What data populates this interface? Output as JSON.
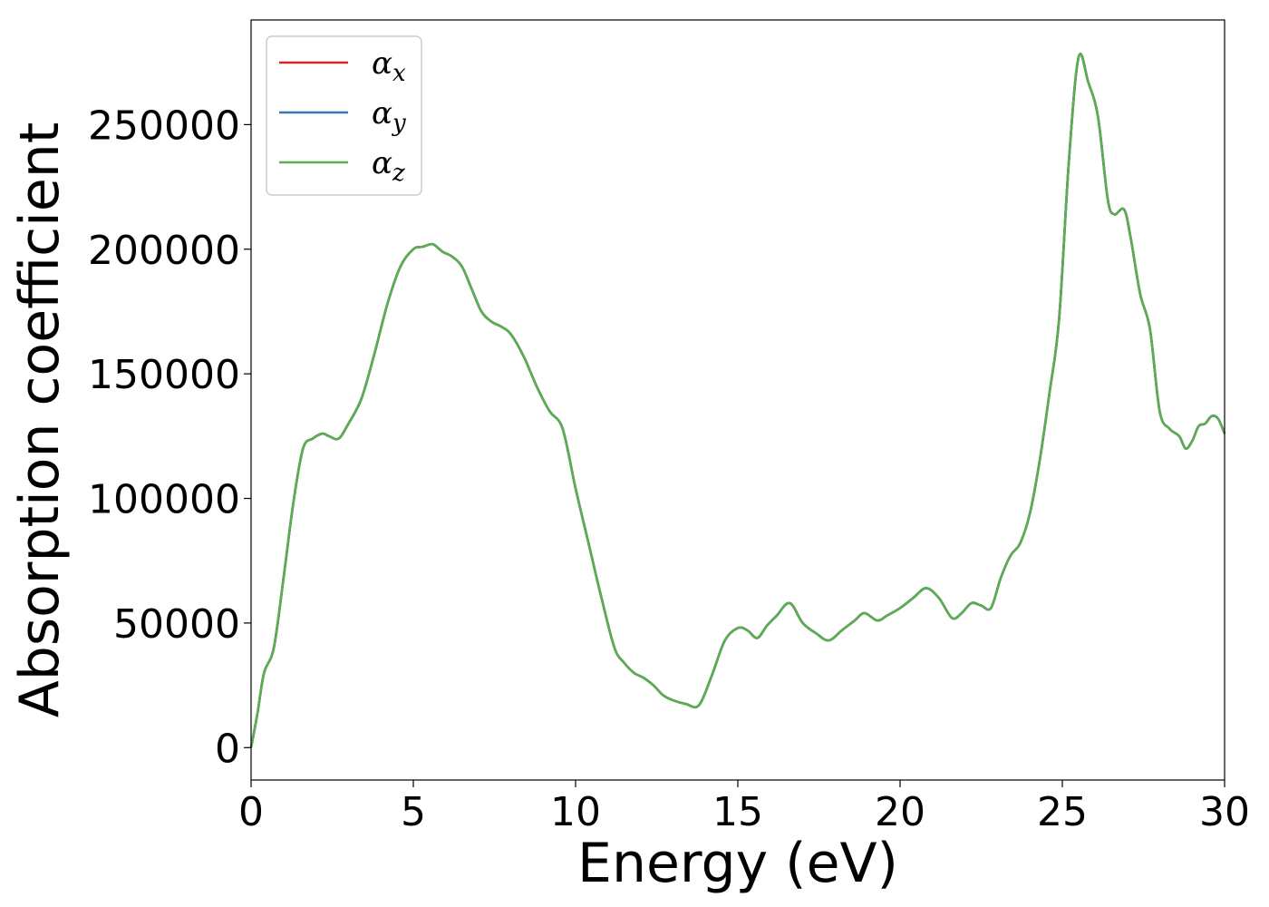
{
  "chart_data": {
    "type": "line",
    "title": "",
    "xlabel": "Energy (eV)",
    "ylabel": "Absorption coefficient",
    "xlim": [
      0,
      30
    ],
    "ylim": [
      -13000,
      292000
    ],
    "xticks": [
      0,
      5,
      10,
      15,
      20,
      25,
      30
    ],
    "yticks": [
      0,
      50000,
      100000,
      150000,
      200000,
      250000
    ],
    "grid": false,
    "legend_position": "top-left",
    "x": [
      0,
      0.2,
      0.4,
      0.7,
      1.0,
      1.3,
      1.6,
      1.9,
      2.2,
      2.4,
      2.7,
      3.0,
      3.4,
      3.8,
      4.2,
      4.6,
      5.0,
      5.3,
      5.6,
      5.9,
      6.2,
      6.5,
      6.8,
      7.1,
      7.4,
      7.7,
      8.0,
      8.4,
      8.8,
      9.2,
      9.6,
      10.0,
      10.4,
      10.8,
      11.2,
      11.5,
      11.8,
      12.1,
      12.4,
      12.7,
      13.0,
      13.4,
      13.8,
      14.2,
      14.6,
      15.0,
      15.3,
      15.6,
      15.9,
      16.2,
      16.6,
      17.0,
      17.4,
      17.8,
      18.2,
      18.6,
      18.9,
      19.3,
      19.6,
      20.0,
      20.4,
      20.8,
      21.2,
      21.6,
      21.9,
      22.2,
      22.5,
      22.8,
      23.1,
      23.4,
      23.7,
      24.0,
      24.3,
      24.6,
      24.9,
      25.2,
      25.5,
      25.8,
      26.1,
      26.4,
      26.6,
      26.9,
      27.1,
      27.4,
      27.7,
      28.0,
      28.3,
      28.6,
      28.8,
      29.0,
      29.2,
      29.4,
      29.6,
      29.8,
      30.0
    ],
    "series": [
      {
        "name": "x",
        "color": "#d62728",
        "values": [
          0,
          14000,
          30000,
          40000,
          68000,
          98000,
          120000,
          124000,
          126000,
          125000,
          124000,
          130000,
          140000,
          158000,
          178000,
          193000,
          200000,
          201000,
          202000,
          199000,
          197000,
          193000,
          184000,
          175000,
          171000,
          169000,
          166000,
          157000,
          145000,
          135000,
          128000,
          104000,
          82000,
          60000,
          40000,
          34000,
          30000,
          28000,
          25000,
          21000,
          19000,
          17500,
          17000,
          29000,
          43000,
          48000,
          47000,
          44000,
          49000,
          53000,
          58000,
          50000,
          46000,
          43000,
          47000,
          51000,
          54000,
          51000,
          53000,
          56000,
          60000,
          64000,
          60000,
          52000,
          54000,
          58000,
          57000,
          56000,
          68000,
          77000,
          82000,
          94000,
          115000,
          142000,
          172000,
          235000,
          277000,
          267000,
          253000,
          220000,
          214000,
          216000,
          205000,
          182000,
          168000,
          135000,
          128000,
          125000,
          120000,
          123000,
          129000,
          130000,
          133000,
          132000,
          126000
        ]
      },
      {
        "name": "y",
        "color": "#3a78b0",
        "values": [
          0,
          14000,
          30000,
          40000,
          68000,
          98000,
          120000,
          124000,
          126000,
          125000,
          124000,
          130000,
          140000,
          158000,
          178000,
          193000,
          200000,
          201000,
          202000,
          199000,
          197000,
          193000,
          184000,
          175000,
          171000,
          169000,
          166000,
          157000,
          145000,
          135000,
          128000,
          104000,
          82000,
          60000,
          40000,
          34000,
          30000,
          28000,
          25000,
          21000,
          19000,
          17500,
          17000,
          29000,
          43000,
          48000,
          47000,
          44000,
          49000,
          53000,
          58000,
          50000,
          46000,
          43000,
          47000,
          51000,
          54000,
          51000,
          53000,
          56000,
          60000,
          64000,
          60000,
          52000,
          54000,
          58000,
          57000,
          56000,
          68000,
          77000,
          82000,
          94000,
          115000,
          142000,
          172000,
          235000,
          277000,
          267000,
          253000,
          220000,
          214000,
          216000,
          205000,
          182000,
          168000,
          135000,
          128000,
          125000,
          120000,
          123000,
          129000,
          130000,
          133000,
          132000,
          126000
        ]
      },
      {
        "name": "z",
        "color": "#5aad50",
        "values": [
          0,
          14000,
          30000,
          40000,
          68000,
          98000,
          120000,
          124000,
          126000,
          125000,
          124000,
          130000,
          140000,
          158000,
          178000,
          193000,
          200000,
          201000,
          202000,
          199000,
          197000,
          193000,
          184000,
          175000,
          171000,
          169000,
          166000,
          157000,
          145000,
          135000,
          128000,
          104000,
          82000,
          60000,
          40000,
          34000,
          30000,
          28000,
          25000,
          21000,
          19000,
          17500,
          17000,
          29000,
          43000,
          48000,
          47000,
          44000,
          49000,
          53000,
          58000,
          50000,
          46000,
          43000,
          47000,
          51000,
          54000,
          51000,
          53000,
          56000,
          60000,
          64000,
          60000,
          52000,
          54000,
          58000,
          57000,
          56000,
          68000,
          77000,
          82000,
          94000,
          115000,
          142000,
          172000,
          235000,
          277000,
          267000,
          253000,
          220000,
          214000,
          216000,
          205000,
          182000,
          168000,
          135000,
          128000,
          125000,
          120000,
          123000,
          129000,
          130000,
          133000,
          132000,
          126000
        ]
      }
    ]
  },
  "legend": {
    "symbol": "α",
    "items": [
      "x",
      "y",
      "z"
    ]
  }
}
